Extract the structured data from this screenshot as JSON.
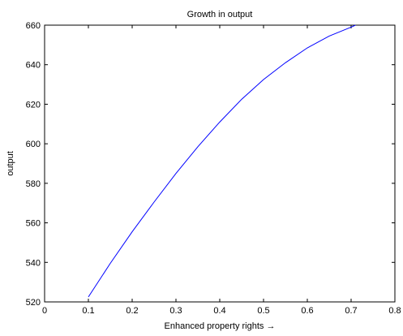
{
  "chart_data": {
    "type": "line",
    "title": "Growth in output",
    "xlabel": "Enhanced property rights →",
    "ylabel": "output",
    "xlim": [
      0,
      0.8
    ],
    "ylim": [
      520,
      660
    ],
    "xticks": [
      "0",
      "0.1",
      "0.2",
      "0.3",
      "0.4",
      "0.5",
      "0.6",
      "0.7",
      "0.8"
    ],
    "yticks": [
      "520",
      "540",
      "560",
      "580",
      "600",
      "620",
      "640",
      "660"
    ],
    "grid": false,
    "series": [
      {
        "color": "#0000ff",
        "x": [
          0.1,
          0.15,
          0.2,
          0.25,
          0.3,
          0.35,
          0.4,
          0.45,
          0.5,
          0.55,
          0.6,
          0.65,
          0.7,
          0.71
        ],
        "y": [
          522.5,
          539.5,
          555.5,
          570.5,
          585,
          598.5,
          611,
          622.5,
          632.5,
          641,
          648.5,
          654.5,
          659,
          660
        ]
      }
    ]
  }
}
